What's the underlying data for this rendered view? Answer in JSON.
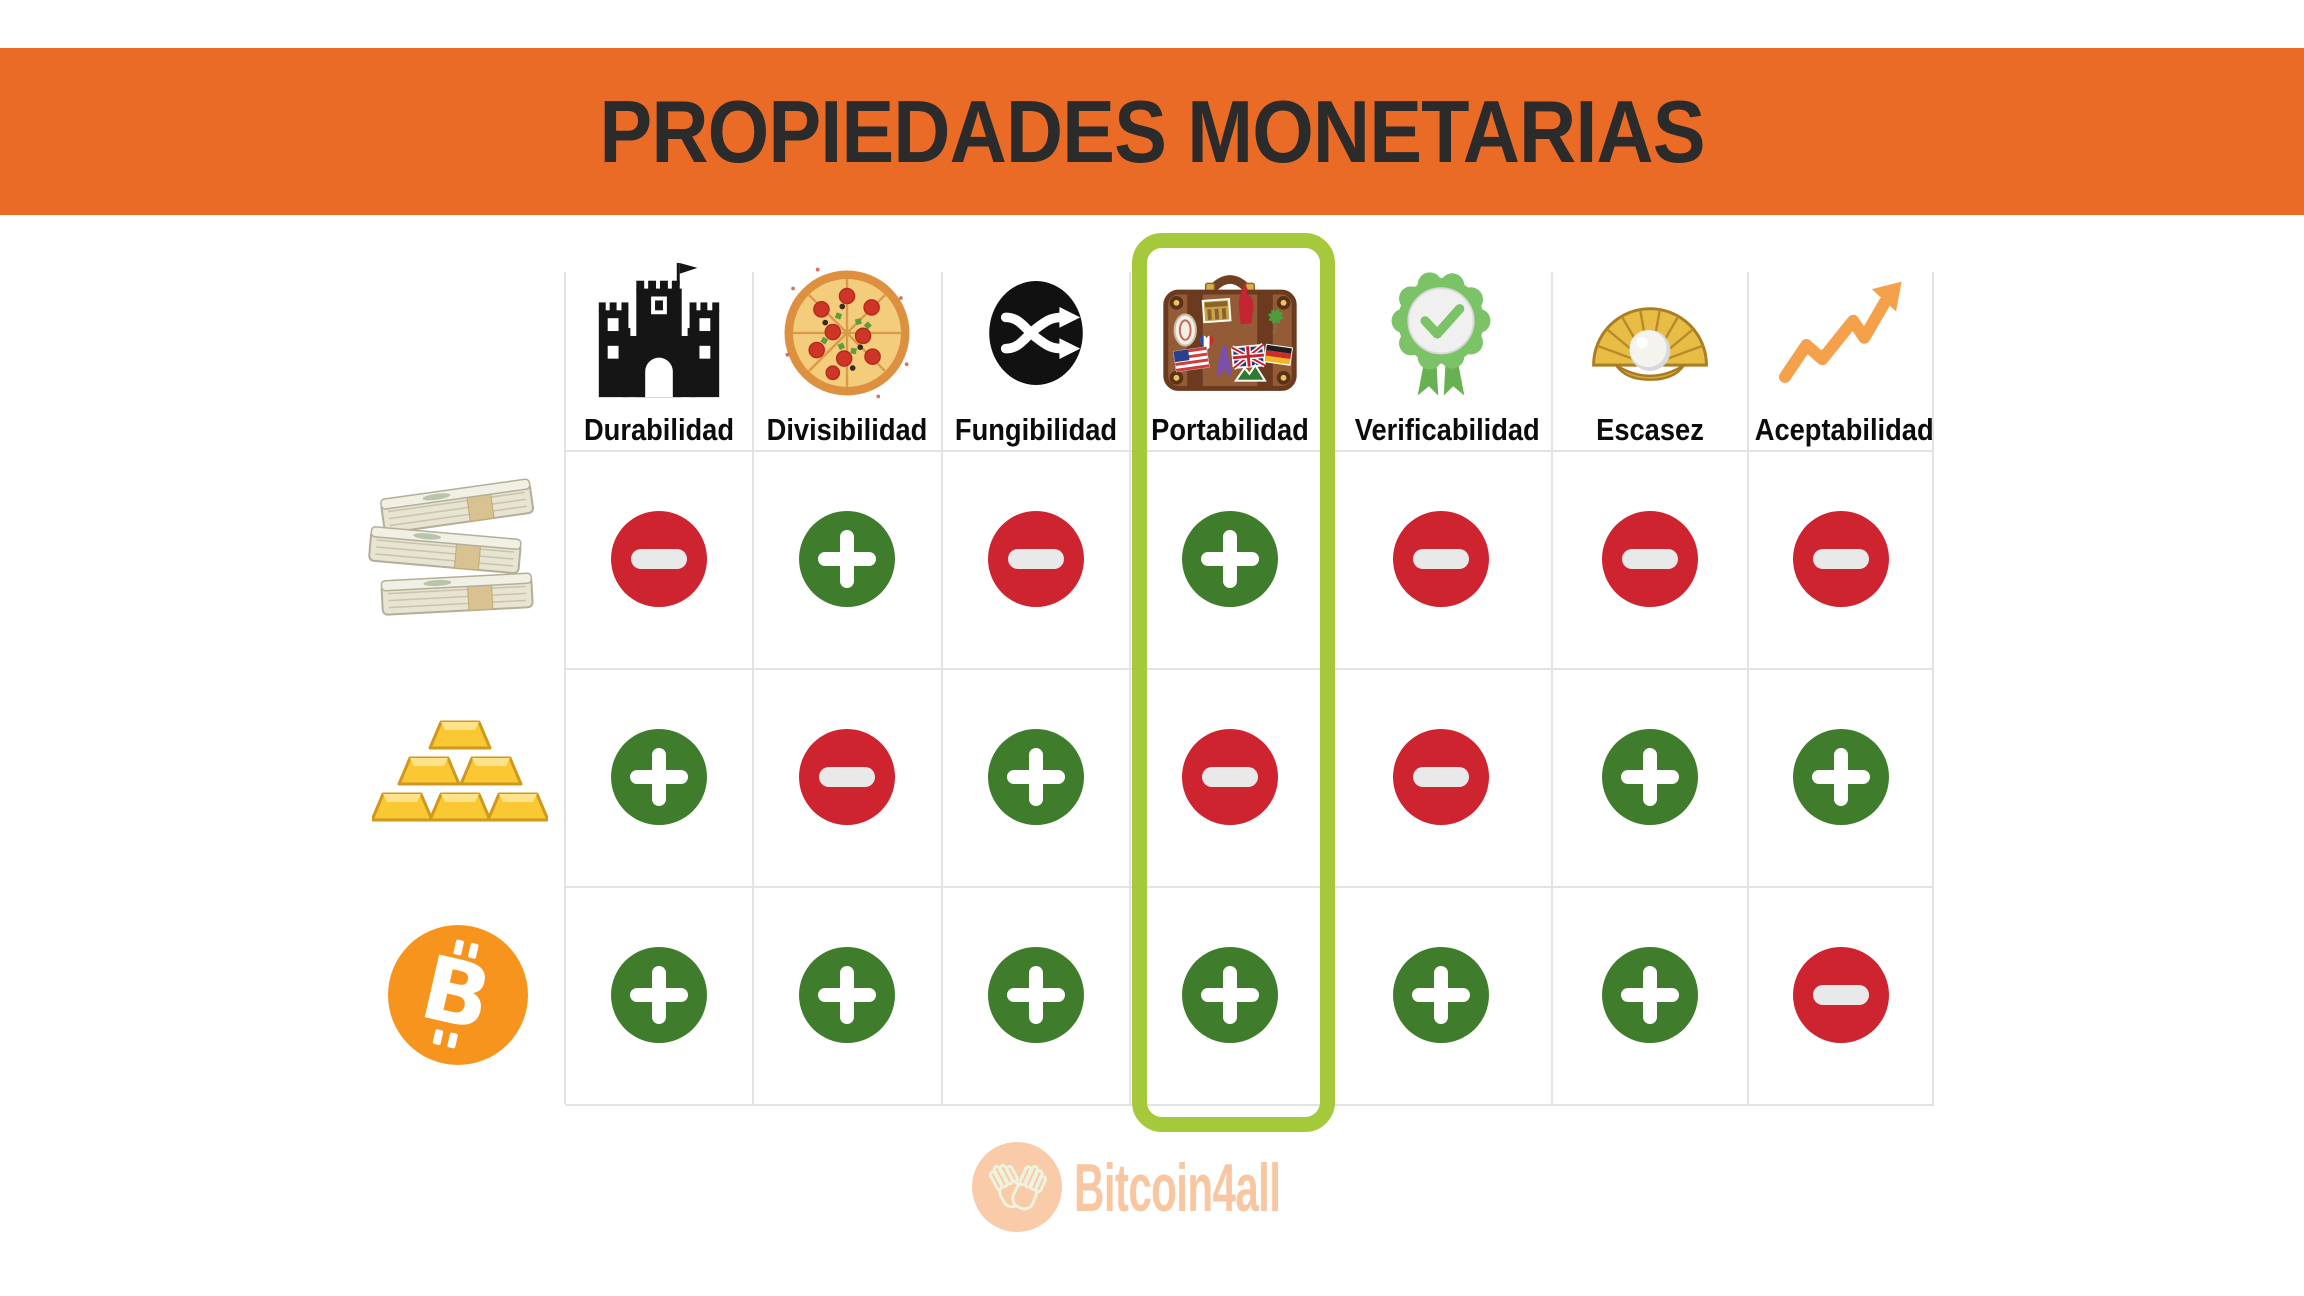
{
  "header": {
    "title": "PROPIEDADES MONETARIAS"
  },
  "columns": [
    {
      "key": "durabilidad",
      "label": "Durabilidad",
      "icon": "castle-icon"
    },
    {
      "key": "divisibilidad",
      "label": "Divisibilidad",
      "icon": "pizza-icon"
    },
    {
      "key": "fungibilidad",
      "label": "Fungibilidad",
      "icon": "shuffle-icon"
    },
    {
      "key": "portabilidad",
      "label": "Portabilidad",
      "icon": "suitcase-icon"
    },
    {
      "key": "verificabilidad",
      "label": "Verificabilidad",
      "icon": "ribbon-check-icon"
    },
    {
      "key": "escasez",
      "label": "Escasez",
      "icon": "shell-pearl-icon"
    },
    {
      "key": "aceptabilidad",
      "label": "Aceptabilidad",
      "icon": "rising-chart-icon"
    }
  ],
  "rows_meta": [
    {
      "key": "cash",
      "icon": "money-stacks-icon"
    },
    {
      "key": "gold",
      "icon": "gold-bars-icon"
    },
    {
      "key": "bitcoin",
      "icon": "bitcoin-icon"
    }
  ],
  "matrix": [
    [
      "minus",
      "plus",
      "minus",
      "plus",
      "minus",
      "minus",
      "minus"
    ],
    [
      "plus",
      "minus",
      "plus",
      "minus",
      "minus",
      "plus",
      "plus"
    ],
    [
      "plus",
      "plus",
      "plus",
      "plus",
      "plus",
      "plus",
      "minus"
    ]
  ],
  "highlighted_column": "Portabilidad",
  "footer": {
    "brand": "Bitcoin4all",
    "icon": "clapping-hands-icon"
  },
  "colors": {
    "band_orange": "#e96b25",
    "positive_green": "#3f7d2c",
    "negative_red": "#cd2430",
    "highlight_lime": "#a6c93c",
    "bitcoin_orange": "#f7941d",
    "brand_peach": "#f8c7a2",
    "grid_gray": "#e3e3e3",
    "title_text": "#2b2b2b"
  },
  "chart_data": {
    "type": "table",
    "title": "PROPIEDADES MONETARIAS",
    "columns": [
      "Durabilidad",
      "Divisibilidad",
      "Fungibilidad",
      "Portabilidad",
      "Verificabilidad",
      "Escasez",
      "Aceptabilidad"
    ],
    "rows": [
      "money-stacks (fiat cash)",
      "gold-bars",
      "bitcoin"
    ],
    "values": [
      [
        "-",
        "+",
        "-",
        "+",
        "-",
        "-",
        "-"
      ],
      [
        "+",
        "-",
        "+",
        "-",
        "-",
        "+",
        "+"
      ],
      [
        "+",
        "+",
        "+",
        "+",
        "+",
        "+",
        "-"
      ]
    ],
    "highlighted_column": "Portabilidad",
    "legend_position": "none",
    "grid": true
  }
}
